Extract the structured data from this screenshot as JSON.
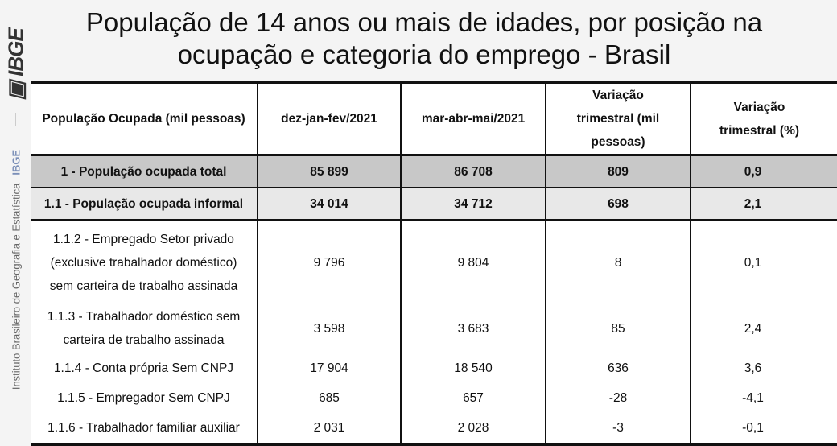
{
  "brand": {
    "logo": "IBGE",
    "institute": "Instituto Brasileiro de Geografia e Estatística",
    "short": "IBGE"
  },
  "title_lines": [
    "População de 14 anos ou mais de idades, por posição na",
    "ocupação e categoria do emprego - Brasil"
  ],
  "table": {
    "headers": [
      "População Ocupada (mil pessoas)",
      "dez-jan-fev/2021",
      "mar-abr-mai/2021",
      "Variação trimestral (mil pessoas)",
      "Variação trimestral (%)"
    ],
    "rows": [
      [
        "1 - População ocupada total",
        "85 899",
        "86 708",
        "809",
        "0,9"
      ],
      [
        "1.1 - População ocupada informal",
        "34 014",
        "34 712",
        "698",
        "2,1"
      ],
      [
        "1.1.2 - Empregado Setor privado (exclusive trabalhador doméstico) sem carteira de trabalho assinada",
        "9 796",
        "9 804",
        "8",
        "0,1"
      ],
      [
        "1.1.3 - Trabalhador doméstico sem carteira de trabalho assinada",
        "3 598",
        "3 683",
        "85",
        "2,4"
      ],
      [
        "1.1.4 - Conta própria Sem CNPJ",
        "17 904",
        "18 540",
        "636",
        "3,6"
      ],
      [
        "1.1.5 - Empregador Sem CNPJ",
        "685",
        "657",
        "-28",
        "-4,1"
      ],
      [
        "1.1.6 - Trabalhador familiar auxiliar",
        "2 031",
        "2 028",
        "-3",
        "-0,1"
      ]
    ]
  },
  "colors": {
    "total_row": "#c8c8c8",
    "informal_row": "#e8e8e8",
    "accent": "#7b8fb8"
  }
}
